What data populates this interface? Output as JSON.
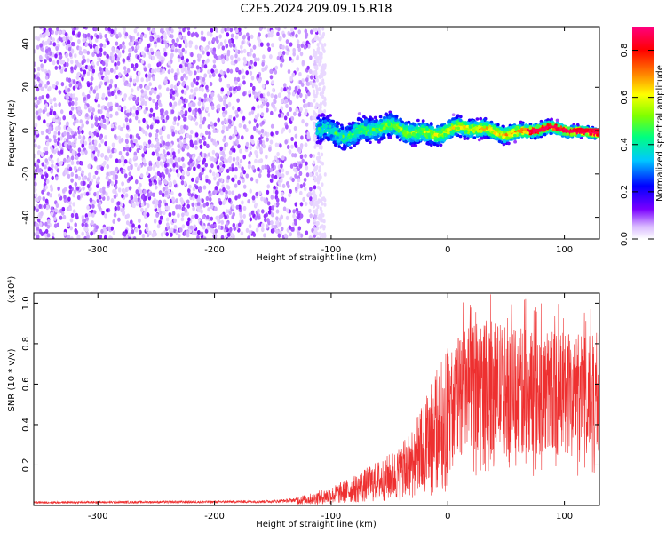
{
  "title": "C2E5.2024.209.09.15.R18",
  "chart_data": [
    {
      "type": "heatmap",
      "xlabel": "Height of straight line (km)",
      "ylabel": "Frequency (Hz)",
      "xlim": [
        -355,
        130
      ],
      "ylim": [
        -50,
        48
      ],
      "x_ticks": [
        -300,
        -200,
        -100,
        0,
        100
      ],
      "y_ticks": [
        -40,
        -20,
        0,
        20,
        40
      ],
      "grid": false,
      "colorbar": {
        "label": "Normalized spectral amplitude",
        "range": [
          0.0,
          0.9
        ],
        "ticks": [
          0.0,
          0.2,
          0.4,
          0.6,
          0.8
        ],
        "colors": [
          "#ffffff",
          "#d8b8ff",
          "#7a00ff",
          "#0000ff",
          "#00c8ff",
          "#00ff80",
          "#80ff00",
          "#ffff00",
          "#ff8000",
          "#ff0000",
          "#ff0080"
        ]
      },
      "structure": [
        {
          "x_range": [
            -355,
            -180
          ],
          "freq_range": [
            -50,
            48
          ],
          "amplitude": [
            0.03,
            0.12
          ]
        },
        {
          "x_range": [
            -180,
            -112
          ],
          "freq_range": [
            -50,
            48
          ],
          "amplitude": [
            0.02,
            0.12
          ]
        },
        {
          "x_range": [
            -112,
            130
          ],
          "freq_center": 0,
          "freq_halfwidth_start": 9,
          "freq_halfwidth_end": 3,
          "amplitude": [
            0.15,
            0.85
          ]
        }
      ]
    },
    {
      "type": "line",
      "xlabel": "Height of straight line (km)",
      "ylabel": "SNR (10 * v/v)",
      "y_multiplier": "(x10⁴)",
      "xlim": [
        -355,
        130
      ],
      "ylim": [
        0,
        1.05
      ],
      "x_ticks": [
        -300,
        -200,
        -100,
        0,
        100
      ],
      "y_ticks": [
        0.2,
        0.4,
        0.6,
        0.8,
        1.0
      ],
      "y_tick_labels": [
        "0.2",
        "0.4",
        "0.6",
        "0.8",
        "1.0"
      ],
      "color": "#ee3030",
      "grid": false,
      "envelope": [
        {
          "x": -355,
          "y": 0.015
        },
        {
          "x": -200,
          "y": 0.018
        },
        {
          "x": -150,
          "y": 0.02
        },
        {
          "x": -120,
          "y": 0.03
        },
        {
          "x": -100,
          "y": 0.05
        },
        {
          "x": -80,
          "y": 0.08
        },
        {
          "x": -60,
          "y": 0.12
        },
        {
          "x": -40,
          "y": 0.16
        },
        {
          "x": -20,
          "y": 0.28
        },
        {
          "x": 0,
          "y": 0.45
        },
        {
          "x": 10,
          "y": 0.55
        },
        {
          "x": 30,
          "y": 0.6
        },
        {
          "x": 60,
          "y": 0.57
        },
        {
          "x": 100,
          "y": 0.55
        },
        {
          "x": 130,
          "y": 0.55
        }
      ]
    }
  ]
}
